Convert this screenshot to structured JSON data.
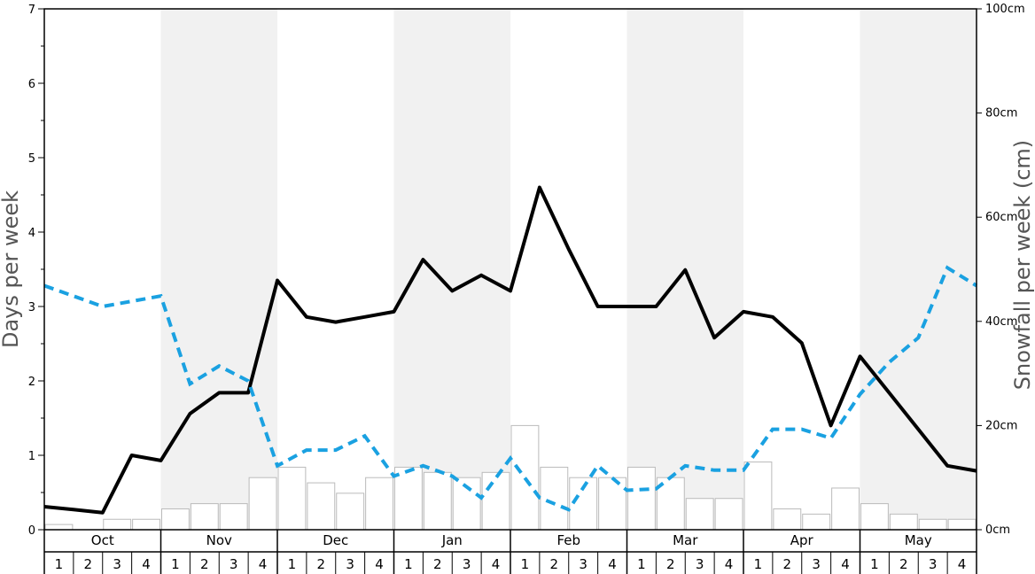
{
  "chart_data": {
    "type": "bar+line",
    "months": [
      "Oct",
      "Nov",
      "Dec",
      "Jan",
      "Feb",
      "Mar",
      "Apr",
      "May"
    ],
    "weeks": [
      "1",
      "2",
      "3",
      "4"
    ],
    "left_axis": {
      "label": "Days per week",
      "range": [
        0,
        7
      ],
      "ticks": [
        "0",
        "1",
        "2",
        "3",
        "4",
        "5",
        "6",
        "7"
      ]
    },
    "right_axis": {
      "label": "Snowfall per week (cm)",
      "range": [
        0,
        100
      ],
      "ticks": [
        "0cm",
        "20cm",
        "40cm",
        "60cm",
        "80cm",
        "100cm"
      ]
    },
    "grid": false,
    "legend": "none",
    "series": [
      {
        "kind": "bar",
        "axis": "right",
        "unit": "cm",
        "color": "#ffffff",
        "edge_color": "#bbbbbb",
        "values": [
          1,
          0,
          2,
          2,
          4,
          5,
          5,
          10,
          12,
          9,
          7,
          10,
          12,
          11,
          10,
          11,
          20,
          12,
          10,
          10,
          12,
          10,
          6,
          6,
          13,
          4,
          3,
          8,
          5,
          3,
          2,
          2
        ]
      },
      {
        "kind": "line",
        "axis": "left",
        "style": "solid",
        "color": "#000000",
        "values": [
          0.31,
          0.27,
          0.23,
          1.0,
          0.93,
          1.56,
          1.84,
          1.84,
          3.35,
          2.86,
          2.79,
          2.86,
          2.93,
          3.63,
          3.21,
          3.42,
          3.21,
          4.6,
          3.77,
          3.0,
          3.0,
          3.0,
          3.49,
          2.58,
          2.93,
          2.86,
          2.51,
          1.4,
          2.33,
          1.84,
          1.35,
          0.86,
          0.79
        ]
      },
      {
        "kind": "line",
        "axis": "left",
        "style": "dashed",
        "color": "#1aa1e1",
        "values": [
          3.28,
          3.14,
          3.0,
          3.07,
          3.14,
          1.96,
          2.2,
          2.0,
          0.86,
          1.07,
          1.07,
          1.26,
          0.72,
          0.86,
          0.72,
          0.43,
          0.96,
          0.43,
          0.27,
          0.86,
          0.53,
          0.55,
          0.86,
          0.8,
          0.8,
          1.35,
          1.35,
          1.23,
          1.82,
          2.25,
          2.58,
          3.52,
          3.28
        ]
      }
    ]
  }
}
